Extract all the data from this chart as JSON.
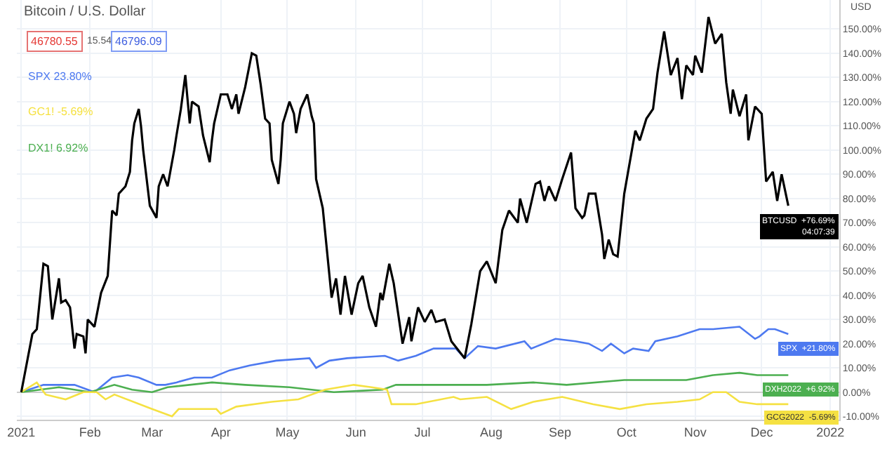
{
  "chart_data": {
    "type": "line",
    "title": "Bitcoin / U.S. Dollar",
    "annotations": [
      "46780.55",
      "15.54",
      "46796.09",
      "SPX 23.80%",
      "GC1! -5.69%",
      "DX1! 6.92%",
      "+76.69%",
      "04:07:39",
      "+21.80%",
      "+6.92%",
      "-5.69%",
      "USD"
    ],
    "series": [
      {
        "name": "BTCUSD",
        "color": "#000000",
        "x": [
          "2021-01-01",
          "2021-01-06",
          "2021-01-08",
          "2021-01-11",
          "2021-01-13",
          "2021-01-15",
          "2021-01-18",
          "2021-01-19",
          "2021-01-21",
          "2021-01-23",
          "2021-01-25",
          "2021-01-26",
          "2021-01-29",
          "2021-01-30",
          "2021-01-31",
          "2021-02-03",
          "2021-02-06",
          "2021-02-09",
          "2021-02-11",
          "2021-02-13",
          "2021-02-14",
          "2021-02-17",
          "2021-02-19",
          "2021-02-20",
          "2021-02-21",
          "2021-02-23",
          "2021-02-24",
          "2021-02-25",
          "2021-02-28",
          "2021-03-03",
          "2021-03-04",
          "2021-03-06",
          "2021-03-08",
          "2021-03-11",
          "2021-03-12",
          "2021-03-14",
          "2021-03-16",
          "2021-03-18",
          "2021-03-19",
          "2021-03-22",
          "2021-03-24",
          "2021-03-27",
          "2021-03-28",
          "2021-03-29",
          "2021-04-01",
          "2021-04-04",
          "2021-04-06",
          "2021-04-08",
          "2021-04-09",
          "2021-04-12",
          "2021-04-15",
          "2021-04-17",
          "2021-04-19",
          "2021-04-21",
          "2021-04-23",
          "2021-04-24",
          "2021-04-27",
          "2021-04-28",
          "2021-04-29",
          "2021-05-02",
          "2021-05-04",
          "2021-05-05",
          "2021-05-07",
          "2021-05-10",
          "2021-05-12",
          "2021-05-13",
          "2021-05-14",
          "2021-05-17",
          "2021-05-21",
          "2021-05-23",
          "2021-05-25",
          "2021-05-27",
          "2021-05-30",
          "2021-06-02",
          "2021-06-04",
          "2021-06-07",
          "2021-06-10",
          "2021-06-12",
          "2021-06-13",
          "2021-06-16",
          "2021-06-18",
          "2021-06-22",
          "2021-06-25",
          "2021-06-26",
          "2021-06-29",
          "2021-07-02",
          "2021-07-05",
          "2021-07-07",
          "2021-07-11",
          "2021-07-14",
          "2021-07-20",
          "2021-07-23",
          "2021-07-27",
          "2021-07-30",
          "2021-08-03",
          "2021-08-06",
          "2021-08-09",
          "2021-08-13",
          "2021-08-14",
          "2021-08-17",
          "2021-08-21",
          "2021-08-23",
          "2021-08-25",
          "2021-08-27",
          "2021-08-30",
          "2021-09-02",
          "2021-09-06",
          "2021-09-08",
          "2021-09-11",
          "2021-09-12",
          "2021-09-14",
          "2021-09-17",
          "2021-09-20",
          "2021-09-21",
          "2021-09-23",
          "2021-09-25",
          "2021-09-27",
          "2021-09-30",
          "2021-10-05",
          "2021-10-07",
          "2021-10-10",
          "2021-10-13",
          "2021-10-15",
          "2021-10-18",
          "2021-10-21",
          "2021-10-24",
          "2021-10-26",
          "2021-10-28",
          "2021-10-31",
          "2021-11-01",
          "2021-11-04",
          "2021-11-07",
          "2021-11-10",
          "2021-11-13",
          "2021-11-15",
          "2021-11-17",
          "2021-11-18",
          "2021-11-21",
          "2021-11-24",
          "2021-11-25",
          "2021-11-28",
          "2021-12-01",
          "2021-12-03",
          "2021-12-06",
          "2021-12-08",
          "2021-12-10",
          "2021-12-13"
        ],
        "values": [
          0,
          24,
          26,
          53,
          52,
          30,
          47,
          37,
          38,
          35,
          18,
          24,
          23,
          16,
          30,
          27,
          41,
          48,
          75,
          73,
          82,
          85,
          91,
          104,
          111,
          117,
          110,
          100,
          77,
          72,
          85,
          90,
          85,
          100,
          106,
          117,
          131,
          111,
          120,
          118,
          106,
          95,
          104,
          111,
          123,
          123,
          117,
          123,
          115,
          126,
          140,
          139,
          127,
          113,
          111,
          96,
          86,
          96,
          111,
          120,
          115,
          107,
          117,
          123,
          114,
          111,
          88,
          76,
          39,
          47,
          32,
          48,
          32,
          45,
          48,
          35,
          27,
          41,
          38,
          53,
          45,
          20,
          31,
          21,
          35,
          29,
          34,
          29,
          30,
          21,
          14,
          28,
          50,
          54,
          45,
          67,
          75,
          70,
          80,
          70,
          86,
          87,
          79,
          85,
          79,
          88,
          99,
          76,
          72,
          73,
          82,
          82,
          65,
          55,
          63,
          57,
          56,
          82,
          108,
          104,
          113,
          117,
          132,
          149,
          131,
          138,
          121,
          135,
          131,
          139,
          132,
          155,
          144,
          148,
          128,
          115,
          125,
          114,
          123,
          104,
          118,
          115,
          87,
          91,
          79,
          90,
          77
        ]
      },
      {
        "name": "SPX",
        "color": "#4d79f0",
        "x": [
          "2021-01-01",
          "2021-01-11",
          "2021-01-25",
          "2021-01-31",
          "2021-02-03",
          "2021-02-11",
          "2021-02-18",
          "2021-02-23",
          "2021-03-03",
          "2021-03-07",
          "2021-03-12",
          "2021-03-20",
          "2021-03-28",
          "2021-04-05",
          "2021-04-14",
          "2021-04-26",
          "2021-05-11",
          "2021-05-14",
          "2021-05-20",
          "2021-05-28",
          "2021-06-14",
          "2021-06-20",
          "2021-06-28",
          "2021-07-06",
          "2021-07-16",
          "2021-07-20",
          "2021-07-26",
          "2021-08-03",
          "2021-08-16",
          "2021-08-19",
          "2021-08-30",
          "2021-09-08",
          "2021-09-14",
          "2021-09-20",
          "2021-09-24",
          "2021-09-30",
          "2021-10-04",
          "2021-10-11",
          "2021-10-14",
          "2021-10-24",
          "2021-11-03",
          "2021-11-09",
          "2021-11-21",
          "2021-11-28",
          "2021-11-30",
          "2021-12-04",
          "2021-12-07",
          "2021-12-13"
        ],
        "values": [
          0,
          3,
          3,
          1,
          0,
          6,
          7,
          6,
          3,
          3,
          4,
          6,
          6,
          9,
          11,
          13,
          14,
          10,
          13,
          14,
          15,
          13,
          15,
          18,
          18,
          14,
          19,
          18,
          21,
          18,
          22,
          21,
          20,
          17,
          20,
          16,
          18,
          17,
          21,
          23,
          26,
          26,
          27,
          22,
          23,
          26,
          26,
          24
        ]
      },
      {
        "name": "DXH2022",
        "color": "#4caf50",
        "x": [
          "2021-01-01",
          "2021-01-18",
          "2021-02-01",
          "2021-02-12",
          "2021-02-20",
          "2021-03-01",
          "2021-03-08",
          "2021-03-28",
          "2021-04-12",
          "2021-05-02",
          "2021-05-22",
          "2021-06-13",
          "2021-06-19",
          "2021-07-13",
          "2021-07-30",
          "2021-08-20",
          "2021-09-04",
          "2021-09-30",
          "2021-10-28",
          "2021-11-09",
          "2021-11-21",
          "2021-11-29",
          "2021-12-13"
        ],
        "values": [
          0,
          2,
          0,
          3,
          1,
          0,
          2,
          4,
          3,
          2,
          0,
          1,
          3,
          3,
          3,
          4,
          3,
          5,
          5,
          7,
          8,
          7,
          7
        ]
      },
      {
        "name": "GCG2022",
        "color": "#f5e142",
        "x": [
          "2021-01-01",
          "2021-01-08",
          "2021-01-12",
          "2021-01-21",
          "2021-01-29",
          "2021-02-04",
          "2021-02-08",
          "2021-02-12",
          "2021-03-01",
          "2021-03-10",
          "2021-03-13",
          "2021-03-30",
          "2021-04-01",
          "2021-04-08",
          "2021-04-24",
          "2021-05-06",
          "2021-05-18",
          "2021-05-31",
          "2021-06-08",
          "2021-06-15",
          "2021-06-17",
          "2021-06-28",
          "2021-07-15",
          "2021-07-18",
          "2021-07-30",
          "2021-08-10",
          "2021-08-20",
          "2021-09-02",
          "2021-09-16",
          "2021-09-28",
          "2021-10-10",
          "2021-10-24",
          "2021-11-03",
          "2021-11-09",
          "2021-11-15",
          "2021-11-21",
          "2021-11-29",
          "2021-12-13"
        ],
        "values": [
          0,
          4,
          -1,
          -3,
          0,
          0,
          -3,
          -1,
          -7,
          -10,
          -7,
          -7,
          -9,
          -6,
          -4,
          -3,
          1,
          3,
          2,
          1,
          -5,
          -5,
          -2,
          -3,
          -2,
          -7,
          -4,
          -2,
          -5,
          -7,
          -5,
          -4,
          -3,
          0,
          0,
          -4,
          -5,
          -5
        ]
      }
    ],
    "xlim": [
      "2020-12-30",
      "2022-01-05"
    ],
    "xticks": [
      {
        "value": "2021-01-01",
        "label": "2021"
      },
      {
        "value": "2021-02-01",
        "label": "Feb"
      },
      {
        "value": "2021-03-01",
        "label": "Mar"
      },
      {
        "value": "2021-04-01",
        "label": "Apr"
      },
      {
        "value": "2021-05-01",
        "label": "May"
      },
      {
        "value": "2021-06-01",
        "label": "Jun"
      },
      {
        "value": "2021-07-01",
        "label": "Jul"
      },
      {
        "value": "2021-08-01",
        "label": "Aug"
      },
      {
        "value": "2021-09-01",
        "label": "Sep"
      },
      {
        "value": "2021-10-01",
        "label": "Oct"
      },
      {
        "value": "2021-11-01",
        "label": "Nov"
      },
      {
        "value": "2021-12-01",
        "label": "Dec"
      },
      {
        "value": "2022-01-01",
        "label": "2022"
      }
    ],
    "ylim": [
      -11.4,
      162
    ],
    "yticks": [
      {
        "value": -10,
        "label": "-10.00%"
      },
      {
        "value": 0,
        "label": "0.00%"
      },
      {
        "value": 10,
        "label": "10.00%"
      },
      {
        "value": 20,
        "label": "20.00%"
      },
      {
        "value": 30,
        "label": "30.00%"
      },
      {
        "value": 40,
        "label": "40.00%"
      },
      {
        "value": 50,
        "label": "50.00%"
      },
      {
        "value": 60,
        "label": "60.00%"
      },
      {
        "value": 70,
        "label": "70.00%"
      },
      {
        "value": 80,
        "label": "80.00%"
      },
      {
        "value": 90,
        "label": "90.00%"
      },
      {
        "value": 100,
        "label": "100.00%"
      },
      {
        "value": 110,
        "label": "110.00%"
      },
      {
        "value": 120,
        "label": "120.00%"
      },
      {
        "value": 130,
        "label": "130.00%"
      },
      {
        "value": 140,
        "label": "140.00%"
      },
      {
        "value": 150,
        "label": "150.00%"
      }
    ],
    "grid": true,
    "legend": false,
    "marker": "none",
    "line_style": "solid"
  }
}
